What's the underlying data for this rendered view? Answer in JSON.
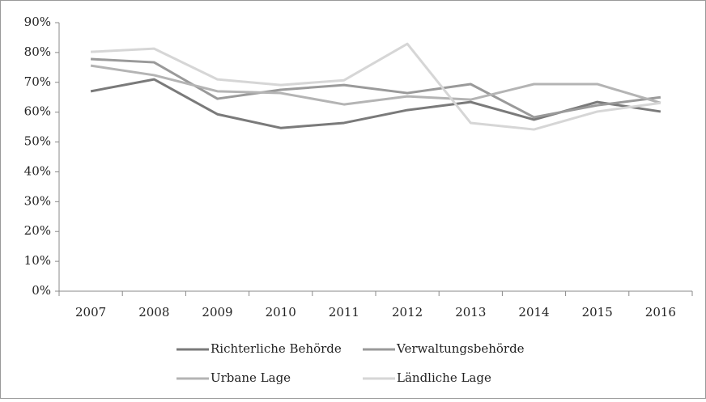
{
  "chart_data": {
    "type": "line",
    "categories": [
      "2007",
      "2008",
      "2009",
      "2010",
      "2011",
      "2012",
      "2013",
      "2014",
      "2015",
      "2016"
    ],
    "series": [
      {
        "name": "Richterliche Behörde",
        "color": "#7a7a7a",
        "values": [
          67,
          71,
          59.3,
          54.7,
          56.4,
          60.7,
          63.4,
          57.5,
          63.4,
          60.2
        ]
      },
      {
        "name": "Verwaltungsbehörde",
        "color": "#9a9a9a",
        "values": [
          77.8,
          76.7,
          64.5,
          67.5,
          69.1,
          66.4,
          69.4,
          58.3,
          62.3,
          65
        ]
      },
      {
        "name": "Urbane Lage",
        "color": "#b4b4b4",
        "values": [
          75.6,
          72.4,
          67,
          66.4,
          62.6,
          65.3,
          64.2,
          69.4,
          69.4,
          63.1
        ]
      },
      {
        "name": "Ländliche Lage",
        "color": "#d6d6d6",
        "values": [
          80.2,
          81.3,
          71,
          69.1,
          70.7,
          82.9,
          56.4,
          54.2,
          60.2,
          63.1
        ]
      }
    ],
    "ylim": [
      0,
      90
    ],
    "yticks": [
      {
        "value": 0,
        "label": "0%"
      },
      {
        "value": 10,
        "label": "10%"
      },
      {
        "value": 20,
        "label": "20%"
      },
      {
        "value": 30,
        "label": "30%"
      },
      {
        "value": 40,
        "label": "40%"
      },
      {
        "value": 50,
        "label": "50%"
      },
      {
        "value": 60,
        "label": "60%"
      },
      {
        "value": 70,
        "label": "70%"
      },
      {
        "value": 80,
        "label": "80%"
      },
      {
        "value": 90,
        "label": "90%"
      }
    ],
    "grid": false,
    "legend": "bottom"
  }
}
